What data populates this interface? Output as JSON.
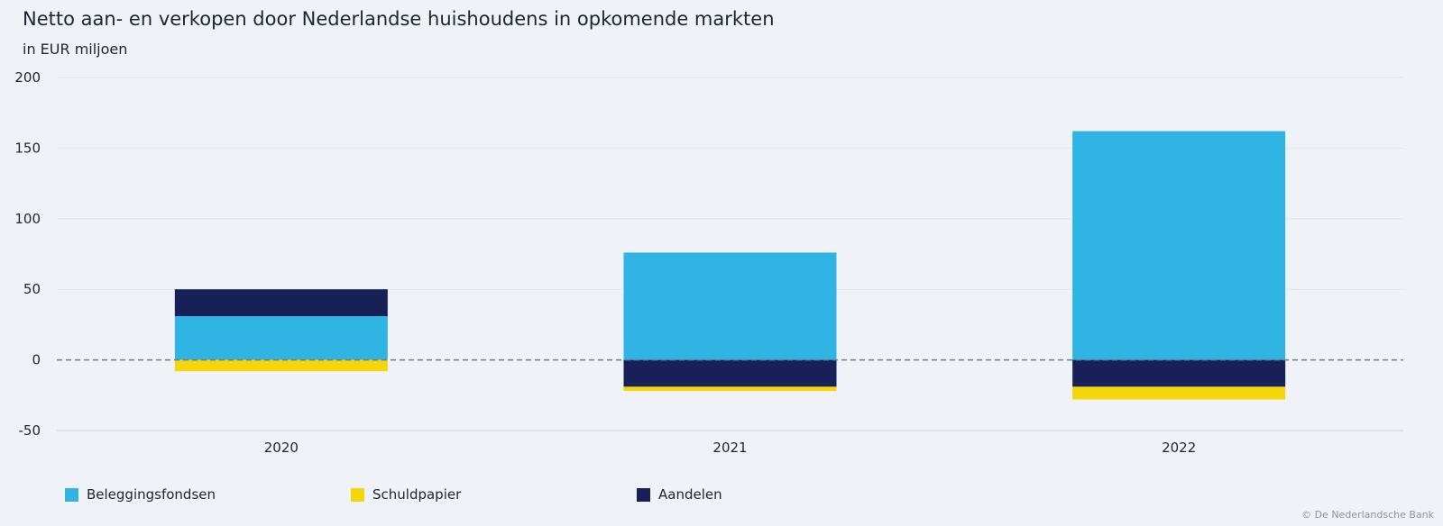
{
  "chart_data": {
    "type": "bar",
    "stacked": true,
    "title": "Netto aan- en verkopen door Nederlandse huishoudens in opkomende markten",
    "subtitle": "in EUR miljoen",
    "categories": [
      "2020",
      "2021",
      "2022"
    ],
    "series": [
      {
        "name": "Beleggingsfondsen",
        "color": "#2fb4e3",
        "values": [
          31,
          76,
          162
        ]
      },
      {
        "name": "Schuldpapier",
        "color": "#f5d60a",
        "values": [
          -8,
          -3,
          -9
        ]
      },
      {
        "name": "Aandelen",
        "color": "#172057",
        "values": [
          19,
          -19,
          -19
        ]
      }
    ],
    "ylim": [
      -50,
      200
    ],
    "yticks": [
      "200",
      "150",
      "100",
      "50",
      "0",
      "-50"
    ],
    "zero_line": "dashed",
    "grid": true,
    "legend_position": "bottom-left"
  },
  "credit": "© De Nederlandsche Bank"
}
